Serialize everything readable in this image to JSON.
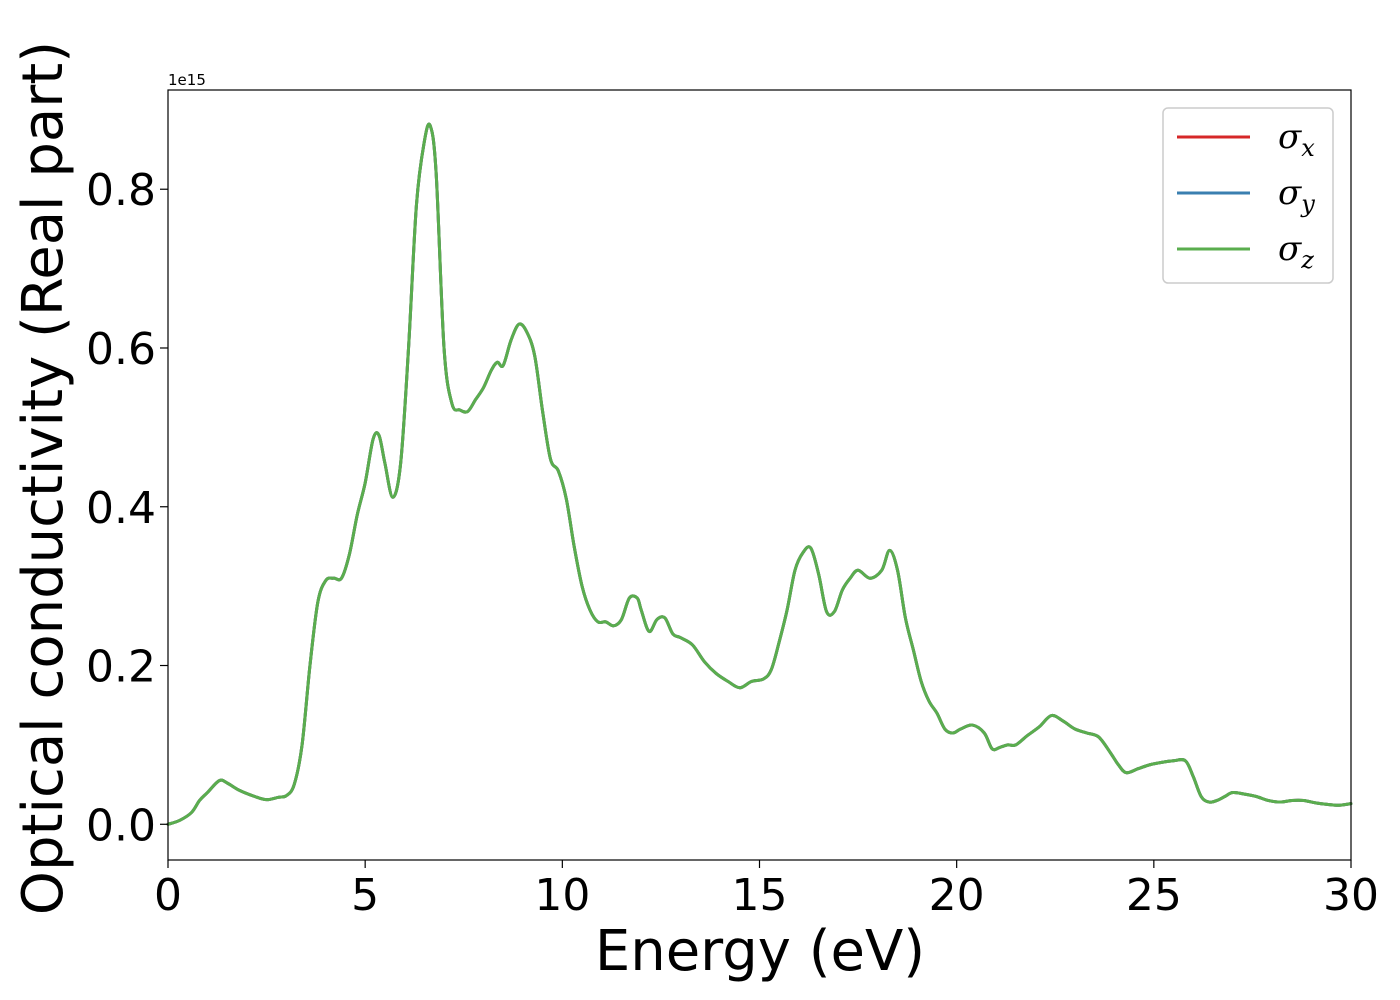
{
  "chart_data": {
    "type": "line",
    "xlabel": "Energy (eV)",
    "ylabel": "Optical conductivity (Real part)",
    "offset_text": "1e15",
    "xlim": [
      0,
      30
    ],
    "ylim": [
      -0.045,
      0.925
    ],
    "x_ticks": [
      0,
      5,
      10,
      15,
      20,
      25,
      30
    ],
    "x_tick_labels": [
      "0",
      "5",
      "10",
      "15",
      "20",
      "25",
      "30"
    ],
    "y_ticks": [
      0.0,
      0.2,
      0.4,
      0.6,
      0.8
    ],
    "y_tick_labels": [
      "0.0",
      "0.2",
      "0.4",
      "0.6",
      "0.8"
    ],
    "grid": false,
    "legend_position": "top-right",
    "series": [
      {
        "name": "σx",
        "symbol": "σ",
        "subscript": "x",
        "color": "#d62728"
      },
      {
        "name": "σy",
        "symbol": "σ",
        "subscript": "y",
        "color": "#3a7fb0"
      },
      {
        "name": "σz",
        "symbol": "σ",
        "subscript": "z",
        "color": "#5aad4e"
      }
    ],
    "x": [
      0,
      0.3,
      0.6,
      0.8,
      1.0,
      1.3,
      1.5,
      1.8,
      2.2,
      2.5,
      2.8,
      3.0,
      3.2,
      3.4,
      3.6,
      3.8,
      4.0,
      4.2,
      4.4,
      4.6,
      4.8,
      5.0,
      5.2,
      5.35,
      5.5,
      5.7,
      5.9,
      6.1,
      6.3,
      6.5,
      6.65,
      6.8,
      7.0,
      7.2,
      7.4,
      7.6,
      7.8,
      8.0,
      8.2,
      8.35,
      8.5,
      8.7,
      8.9,
      9.1,
      9.3,
      9.5,
      9.7,
      9.9,
      10.1,
      10.3,
      10.5,
      10.7,
      10.9,
      11.1,
      11.3,
      11.5,
      11.7,
      11.9,
      12.0,
      12.2,
      12.4,
      12.6,
      12.8,
      13.0,
      13.3,
      13.6,
      13.9,
      14.2,
      14.5,
      14.8,
      15.1,
      15.3,
      15.5,
      15.7,
      15.9,
      16.1,
      16.3,
      16.5,
      16.7,
      16.9,
      17.1,
      17.3,
      17.5,
      17.8,
      18.1,
      18.3,
      18.5,
      18.7,
      18.9,
      19.1,
      19.3,
      19.5,
      19.7,
      19.9,
      20.1,
      20.4,
      20.7,
      20.9,
      21.1,
      21.3,
      21.5,
      21.8,
      22.1,
      22.4,
      22.7,
      23.0,
      23.3,
      23.6,
      23.9,
      24.1,
      24.3,
      24.6,
      24.9,
      25.2,
      25.5,
      25.8,
      26.0,
      26.2,
      26.4,
      26.6,
      26.8,
      27.0,
      27.3,
      27.6,
      27.9,
      28.2,
      28.5,
      28.8,
      29.1,
      29.4,
      29.7,
      30.0
    ],
    "y": [
      0.0,
      0.005,
      0.015,
      0.03,
      0.04,
      0.055,
      0.052,
      0.043,
      0.035,
      0.031,
      0.034,
      0.036,
      0.05,
      0.1,
      0.2,
      0.28,
      0.307,
      0.31,
      0.31,
      0.34,
      0.39,
      0.43,
      0.485,
      0.49,
      0.455,
      0.412,
      0.455,
      0.6,
      0.78,
      0.86,
      0.88,
      0.82,
      0.6,
      0.53,
      0.522,
      0.52,
      0.535,
      0.55,
      0.572,
      0.582,
      0.578,
      0.61,
      0.63,
      0.62,
      0.59,
      0.52,
      0.46,
      0.445,
      0.41,
      0.35,
      0.3,
      0.27,
      0.255,
      0.255,
      0.25,
      0.258,
      0.285,
      0.285,
      0.27,
      0.243,
      0.258,
      0.26,
      0.24,
      0.235,
      0.226,
      0.205,
      0.19,
      0.18,
      0.172,
      0.18,
      0.183,
      0.195,
      0.23,
      0.27,
      0.32,
      0.342,
      0.348,
      0.315,
      0.268,
      0.268,
      0.295,
      0.31,
      0.32,
      0.31,
      0.32,
      0.345,
      0.32,
      0.26,
      0.22,
      0.18,
      0.155,
      0.14,
      0.12,
      0.115,
      0.12,
      0.125,
      0.115,
      0.095,
      0.097,
      0.1,
      0.1,
      0.112,
      0.123,
      0.137,
      0.13,
      0.12,
      0.115,
      0.11,
      0.09,
      0.075,
      0.065,
      0.07,
      0.075,
      0.078,
      0.08,
      0.08,
      0.06,
      0.035,
      0.028,
      0.03,
      0.035,
      0.04,
      0.038,
      0.035,
      0.03,
      0.028,
      0.03,
      0.03,
      0.027,
      0.025,
      0.024,
      0.026
    ]
  }
}
